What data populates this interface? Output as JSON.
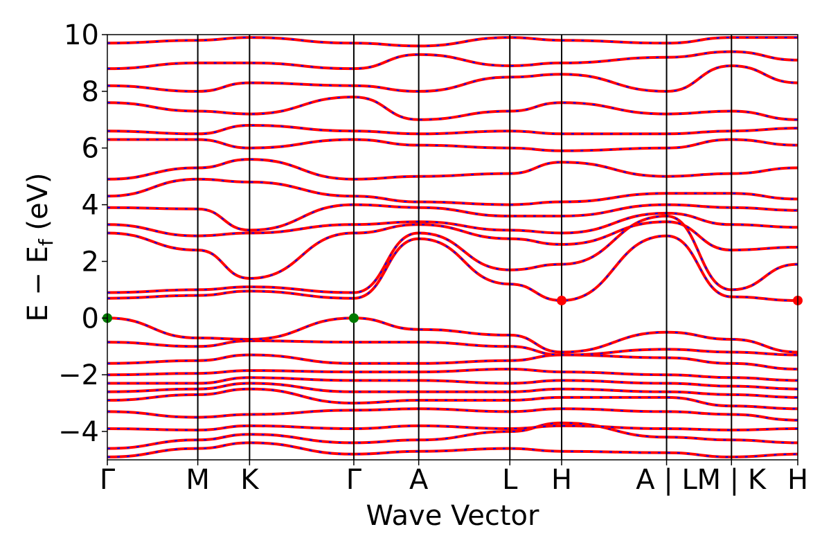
{
  "chart_data": {
    "type": "line",
    "title": "",
    "xlabel": "Wave Vector",
    "ylabel": "E − E",
    "ylabel_sub": "f",
    "ylabel_unit": " (eV)",
    "ylim": [
      -5,
      10
    ],
    "y_ticks": [
      {
        "value": -4,
        "label": "−4"
      },
      {
        "value": -2,
        "label": "−2"
      },
      {
        "value": 0,
        "label": "0"
      },
      {
        "value": 2,
        "label": "2"
      },
      {
        "value": 4,
        "label": "4"
      },
      {
        "value": 6,
        "label": "6"
      },
      {
        "value": 8,
        "label": "8"
      },
      {
        "value": 10,
        "label": "10"
      }
    ],
    "x_range": [
      0,
      1
    ],
    "x_ticks": [
      {
        "x": 0.0,
        "label": "Γ"
      },
      {
        "x": 0.131,
        "label": "M"
      },
      {
        "x": 0.206,
        "label": "K"
      },
      {
        "x": 0.357,
        "label": "Γ"
      },
      {
        "x": 0.451,
        "label": "A"
      },
      {
        "x": 0.583,
        "label": "L"
      },
      {
        "x": 0.658,
        "label": "H"
      },
      {
        "x": 0.81,
        "label": "A | L"
      },
      {
        "x": 0.904,
        "label": "M | K"
      },
      {
        "x": 1.0,
        "label": "H"
      }
    ],
    "band_colors": {
      "primary": "#ff0000",
      "secondary": "#0000ff"
    },
    "band_extrema": [
      {
        "name": "VBM",
        "x": 0.0,
        "y": 0.0,
        "color": "#007a00"
      },
      {
        "name": "VBM",
        "x": 0.357,
        "y": 0.0,
        "color": "#007a00"
      },
      {
        "name": "CBM",
        "x": 0.658,
        "y": 0.62,
        "color": "#ff0000"
      },
      {
        "name": "CBM",
        "x": 1.0,
        "y": 0.62,
        "color": "#ff0000"
      }
    ],
    "bands": [
      {
        "name": "b1",
        "x": [
          0,
          0.131,
          0.206,
          0.357,
          0.451,
          0.583,
          0.658,
          0.81,
          0.904,
          1.0
        ],
        "y": [
          -4.9,
          -4.6,
          -4.4,
          -4.8,
          -4.7,
          -4.6,
          -4.7,
          -4.75,
          -4.9,
          -4.8
        ]
      },
      {
        "name": "b2",
        "x": [
          0,
          0.131,
          0.206,
          0.357,
          0.451,
          0.583,
          0.658,
          0.81,
          0.904,
          1.0
        ],
        "y": [
          -4.6,
          -4.3,
          -4.1,
          -4.4,
          -4.3,
          -4.0,
          -3.7,
          -4.2,
          -4.3,
          -4.4
        ]
      },
      {
        "name": "b3",
        "x": [
          0,
          0.131,
          0.206,
          0.357,
          0.451,
          0.583,
          0.658,
          0.81,
          0.904,
          1.0
        ],
        "y": [
          -3.9,
          -3.95,
          -3.8,
          -3.9,
          -3.8,
          -3.9,
          -3.8,
          -3.9,
          -3.95,
          -3.9
        ]
      },
      {
        "name": "b4",
        "x": [
          0,
          0.131,
          0.206,
          0.357,
          0.451,
          0.583,
          0.658,
          0.81,
          0.904,
          1.0
        ],
        "y": [
          -3.3,
          -3.5,
          -3.4,
          -3.25,
          -3.2,
          -3.3,
          -3.2,
          -3.3,
          -3.4,
          -3.6
        ]
      },
      {
        "name": "b5",
        "x": [
          0,
          0.131,
          0.206,
          0.357,
          0.451,
          0.583,
          0.658,
          0.81,
          0.904,
          1.0
        ],
        "y": [
          -2.9,
          -2.7,
          -2.5,
          -3.0,
          -2.9,
          -2.9,
          -2.8,
          -2.8,
          -3.1,
          -3.2
        ]
      },
      {
        "name": "b6",
        "x": [
          0,
          0.131,
          0.206,
          0.357,
          0.451,
          0.583,
          0.658,
          0.81,
          0.904,
          1.0
        ],
        "y": [
          -2.6,
          -2.5,
          -2.3,
          -2.6,
          -2.6,
          -2.6,
          -2.5,
          -2.6,
          -2.7,
          -2.8
        ]
      },
      {
        "name": "b7",
        "x": [
          0,
          0.131,
          0.206,
          0.357,
          0.451,
          0.583,
          0.658,
          0.81,
          0.904,
          1.0
        ],
        "y": [
          -2.3,
          -2.3,
          -2.1,
          -2.2,
          -2.2,
          -2.3,
          -2.2,
          -2.3,
          -2.4,
          -2.5
        ]
      },
      {
        "name": "b8",
        "x": [
          0,
          0.131,
          0.206,
          0.357,
          0.451,
          0.583,
          0.658,
          0.81,
          0.904,
          1.0
        ],
        "y": [
          -2.0,
          -1.95,
          -1.85,
          -1.9,
          -1.9,
          -1.8,
          -1.9,
          -2.0,
          -2.1,
          -2.2
        ]
      },
      {
        "name": "b9",
        "x": [
          0,
          0.131,
          0.206,
          0.357,
          0.451,
          0.583,
          0.658,
          0.81,
          0.904,
          1.0
        ],
        "y": [
          -1.6,
          -1.5,
          -1.3,
          -1.6,
          -1.6,
          -1.5,
          -1.3,
          -1.4,
          -1.6,
          -1.8
        ]
      },
      {
        "name": "b10",
        "x": [
          0,
          0.131,
          0.206,
          0.357,
          0.451,
          0.583,
          0.658,
          0.81,
          0.904,
          1.0
        ],
        "y": [
          -0.85,
          -1.0,
          -0.8,
          -0.85,
          -0.85,
          -1.0,
          -1.3,
          -1.1,
          -1.2,
          -1.3
        ]
      },
      {
        "name": "b11",
        "x": [
          0,
          0.131,
          0.206,
          0.357,
          0.451,
          0.583,
          0.658,
          0.81,
          0.904,
          1.0
        ],
        "y": [
          0.0,
          -0.7,
          -0.75,
          0.0,
          -0.4,
          -0.6,
          -1.2,
          -0.5,
          -0.75,
          -1.2
        ]
      },
      {
        "name": "b12",
        "x": [
          0,
          0.131,
          0.206,
          0.357,
          0.451,
          0.583,
          0.658,
          0.81,
          0.904,
          1.0
        ],
        "y": [
          0.7,
          0.8,
          0.95,
          0.7,
          2.8,
          1.2,
          0.62,
          2.9,
          0.75,
          0.62
        ]
      },
      {
        "name": "b13",
        "x": [
          0,
          0.131,
          0.206,
          0.357,
          0.451,
          0.583,
          0.658,
          0.81,
          0.904,
          1.0
        ],
        "y": [
          0.9,
          1.0,
          1.1,
          0.9,
          3.0,
          1.7,
          1.9,
          3.6,
          1.0,
          1.9
        ]
      },
      {
        "name": "b14",
        "x": [
          0,
          0.131,
          0.206,
          0.357,
          0.451,
          0.583,
          0.658,
          0.81,
          0.904,
          1.0
        ],
        "y": [
          3.0,
          2.4,
          1.4,
          3.0,
          3.3,
          2.8,
          2.6,
          3.4,
          2.4,
          2.5
        ]
      },
      {
        "name": "b15",
        "x": [
          0,
          0.131,
          0.206,
          0.357,
          0.451,
          0.583,
          0.658,
          0.81,
          0.904,
          1.0
        ],
        "y": [
          3.3,
          2.9,
          3.0,
          3.3,
          3.4,
          3.1,
          3.0,
          3.7,
          3.3,
          3.2
        ]
      },
      {
        "name": "b16",
        "x": [
          0,
          0.131,
          0.206,
          0.357,
          0.451,
          0.583,
          0.658,
          0.81,
          0.904,
          1.0
        ],
        "y": [
          3.9,
          3.85,
          3.1,
          4.0,
          3.9,
          3.6,
          3.6,
          4.0,
          3.9,
          3.8
        ]
      },
      {
        "name": "b17",
        "x": [
          0,
          0.131,
          0.206,
          0.357,
          0.451,
          0.583,
          0.658,
          0.81,
          0.904,
          1.0
        ],
        "y": [
          4.3,
          4.9,
          4.8,
          4.3,
          4.1,
          4.0,
          4.1,
          4.4,
          4.4,
          4.2
        ]
      },
      {
        "name": "b18",
        "x": [
          0,
          0.131,
          0.206,
          0.357,
          0.451,
          0.583,
          0.658,
          0.81,
          0.904,
          1.0
        ],
        "y": [
          4.9,
          5.3,
          5.6,
          4.9,
          5.0,
          5.1,
          5.5,
          5.0,
          5.1,
          5.3
        ]
      },
      {
        "name": "b19",
        "x": [
          0,
          0.131,
          0.206,
          0.357,
          0.451,
          0.583,
          0.658,
          0.81,
          0.904,
          1.0
        ],
        "y": [
          6.3,
          6.3,
          6.0,
          6.3,
          6.1,
          6.0,
          5.9,
          6.0,
          6.3,
          6.1
        ]
      },
      {
        "name": "b20",
        "x": [
          0,
          0.131,
          0.206,
          0.357,
          0.451,
          0.583,
          0.658,
          0.81,
          0.904,
          1.0
        ],
        "y": [
          6.6,
          6.5,
          6.8,
          6.6,
          6.5,
          6.6,
          6.5,
          6.5,
          6.6,
          6.7
        ]
      },
      {
        "name": "b21",
        "x": [
          0,
          0.131,
          0.206,
          0.357,
          0.451,
          0.583,
          0.658,
          0.81,
          0.904,
          1.0
        ],
        "y": [
          7.6,
          7.3,
          7.2,
          7.8,
          7.0,
          7.3,
          7.6,
          7.2,
          7.3,
          7.0
        ]
      },
      {
        "name": "b22",
        "x": [
          0,
          0.131,
          0.206,
          0.357,
          0.451,
          0.583,
          0.658,
          0.81,
          0.904,
          1.0
        ],
        "y": [
          8.2,
          8.0,
          8.3,
          8.2,
          8.0,
          8.5,
          8.6,
          8.0,
          8.9,
          8.3
        ]
      },
      {
        "name": "b23",
        "x": [
          0,
          0.131,
          0.206,
          0.357,
          0.451,
          0.583,
          0.658,
          0.81,
          0.904,
          1.0
        ],
        "y": [
          8.8,
          9.0,
          9.0,
          8.8,
          9.3,
          8.9,
          9.0,
          9.2,
          9.4,
          9.1
        ]
      },
      {
        "name": "b24",
        "x": [
          0,
          0.131,
          0.206,
          0.357,
          0.451,
          0.583,
          0.658,
          0.81,
          0.904,
          1.0
        ],
        "y": [
          9.7,
          9.8,
          9.9,
          9.7,
          9.6,
          9.9,
          9.8,
          9.7,
          9.9,
          9.9
        ]
      }
    ]
  }
}
